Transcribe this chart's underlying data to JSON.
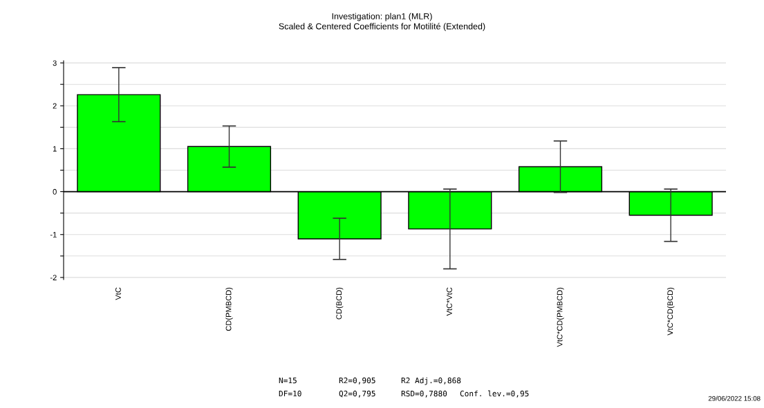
{
  "chart_data": {
    "type": "bar",
    "title": "Investigation: plan1 (MLR)",
    "subtitle": "Scaled & Centered Coefficients for Motilité (Extended)",
    "categories": [
      "VtC",
      "CD(PMBCD)",
      "CD(BCD)",
      "VtC*VtC",
      "VtC*CD(PMBCD)",
      "VtC*CD(BCD)"
    ],
    "values": [
      2.26,
      1.05,
      -1.1,
      -0.87,
      0.58,
      -0.55
    ],
    "errors": [
      0.63,
      0.48,
      0.48,
      0.93,
      0.6,
      0.61
    ],
    "color": "#00ff00",
    "ylim": [
      -2.05,
      3.05
    ],
    "yticks": [
      -2,
      {
        "value": -1.5,
        "label": null
      },
      -1,
      {
        "value": -0.5,
        "label": null
      },
      0,
      {
        "value": 0.5,
        "label": null
      },
      1,
      {
        "value": 1.5,
        "label": null
      },
      2,
      {
        "value": 2.5,
        "label": null
      },
      3
    ],
    "grid": "y",
    "annotations": [
      "N=15",
      "DF=10",
      "R2=0,905",
      "Q2=0,795",
      "R2 Adj.=0,868",
      "RSD=0,7880",
      "Conf. lev.=0,95",
      "29/06/2022 15:08"
    ]
  }
}
